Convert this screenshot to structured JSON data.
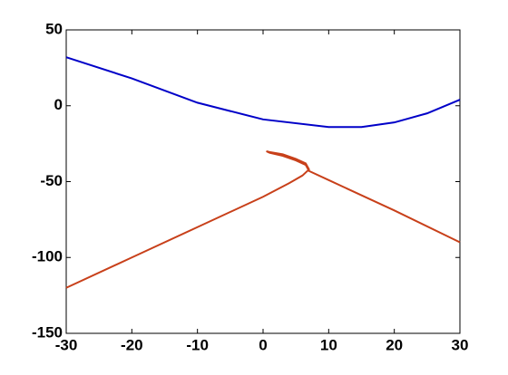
{
  "chart_data": {
    "type": "line",
    "x": [
      -30,
      -20,
      -10,
      0,
      10,
      15,
      20,
      25,
      30
    ],
    "series": [
      {
        "color": "#0000c8",
        "x": [
          -30,
          -20,
          -10,
          0,
          10,
          15,
          20,
          25,
          30
        ],
        "values": [
          32,
          18,
          2,
          -9,
          -14,
          -14,
          -11,
          -5,
          4
        ]
      },
      {
        "color": "#c8401a",
        "x": [
          -30,
          -20,
          -10,
          0,
          4,
          6,
          7,
          6.5,
          5,
          3,
          1,
          0.5,
          1,
          3,
          5,
          6.5,
          7,
          10,
          20,
          30
        ],
        "values": [
          -120,
          -100,
          -80,
          -60,
          -51,
          -46,
          -42,
          -38,
          -35,
          -32,
          -30.5,
          -30,
          -31,
          -33,
          -36,
          -39,
          -43,
          -49,
          -69,
          -90
        ]
      }
    ],
    "xlim": [
      -30,
      30
    ],
    "xticks": [
      -30,
      -20,
      -10,
      0,
      10,
      20,
      30
    ],
    "ylim": [
      -150,
      50
    ],
    "yticks": [
      -150,
      -100,
      -50,
      0,
      50
    ]
  }
}
